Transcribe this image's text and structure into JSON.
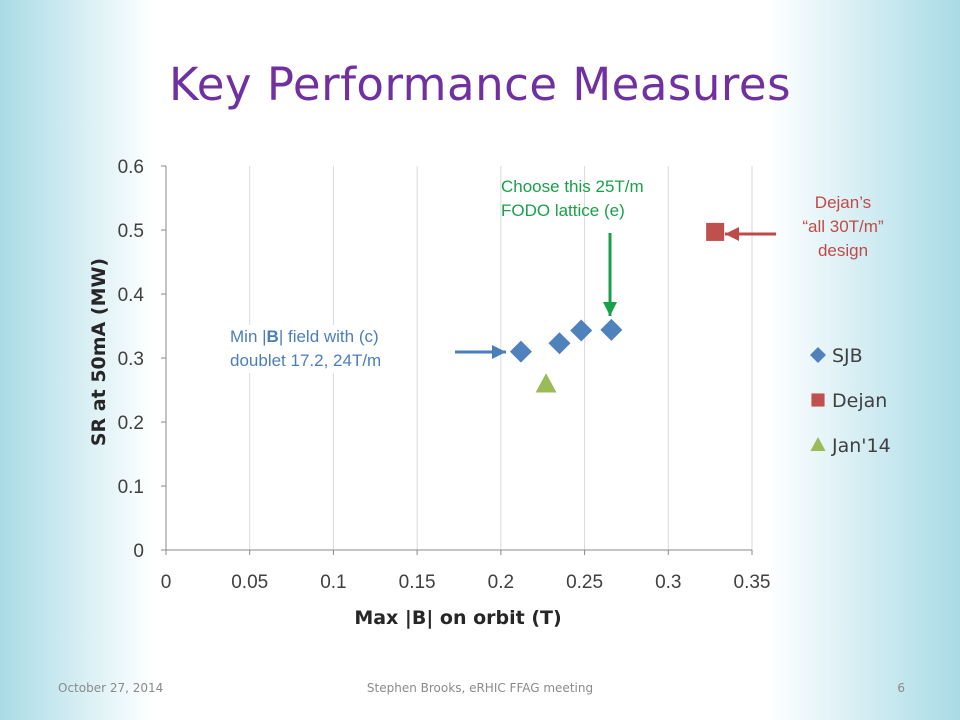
{
  "slide": {
    "title": "Key Performance Measures",
    "footer": {
      "date": "October 27, 2014",
      "center": "Stephen Brooks, eRHIC FFAG meeting",
      "page": "6"
    }
  },
  "annotations": {
    "green": {
      "lines": [
        "Choose this 25T/m",
        "FODO lattice (e)"
      ],
      "color": "#1aa04a"
    },
    "red": {
      "lines": [
        "Dejan’s",
        "“all 30T/m”",
        "design"
      ],
      "color": "#be4b48"
    },
    "blue": {
      "line1_prefix": "Min |",
      "line1_bold": "B",
      "line1_suffix": "| field with (c)",
      "line2": "doublet 17.2, 24T/m",
      "color": "#4a7ebb"
    }
  },
  "chart_data": {
    "type": "scatter",
    "title": "",
    "xlabel": "Max |B| on orbit (T)",
    "ylabel": "SR at 50mA (MW)",
    "xlim": [
      0,
      0.35
    ],
    "ylim": [
      0,
      0.6
    ],
    "xticks": [
      "0",
      "0.05",
      "0.1",
      "0.15",
      "0.2",
      "0.25",
      "0.3",
      "0.35"
    ],
    "yticks": [
      "0",
      "0.1",
      "0.2",
      "0.3",
      "0.4",
      "0.5",
      "0.6"
    ],
    "grid": "vertical",
    "legend_position": "right",
    "series": [
      {
        "name": "SJB",
        "marker": "diamond",
        "color": "#4f81bd",
        "points": [
          [
            0.212,
            0.31
          ],
          [
            0.235,
            0.323
          ],
          [
            0.248,
            0.343
          ],
          [
            0.266,
            0.344
          ]
        ]
      },
      {
        "name": "Dejan",
        "marker": "square",
        "color": "#c0504d",
        "points": [
          [
            0.328,
            0.497
          ]
        ]
      },
      {
        "name": "Jan'14",
        "marker": "triangle",
        "color": "#9bbb59",
        "points": [
          [
            0.227,
            0.259
          ]
        ]
      }
    ]
  }
}
